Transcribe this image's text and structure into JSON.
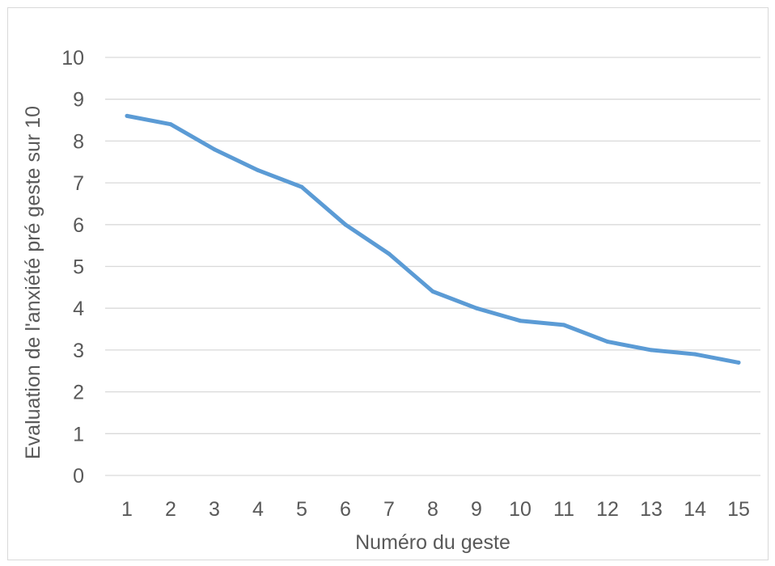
{
  "chart_data": {
    "type": "line",
    "title": "",
    "xlabel": "Numéro du geste",
    "ylabel": "Evaluation de l'anxiété pré geste sur 10",
    "categories": [
      "1",
      "2",
      "3",
      "4",
      "5",
      "6",
      "7",
      "8",
      "9",
      "10",
      "11",
      "12",
      "13",
      "14",
      "15"
    ],
    "yticks": [
      "0",
      "1",
      "2",
      "3",
      "4",
      "5",
      "6",
      "7",
      "8",
      "9",
      "10"
    ],
    "ylim": [
      0,
      10
    ],
    "grid": true,
    "legend": "none",
    "series": [
      {
        "values": [
          8.6,
          8.4,
          7.8,
          7.3,
          6.9,
          6.0,
          5.3,
          4.4,
          4.0,
          3.7,
          3.6,
          3.2,
          3.0,
          2.9,
          2.7
        ],
        "color": "#5b9bd5"
      }
    ],
    "colors": {
      "grid": "#d9d9d9",
      "text": "#595959",
      "border": "#d9d9d9"
    }
  }
}
